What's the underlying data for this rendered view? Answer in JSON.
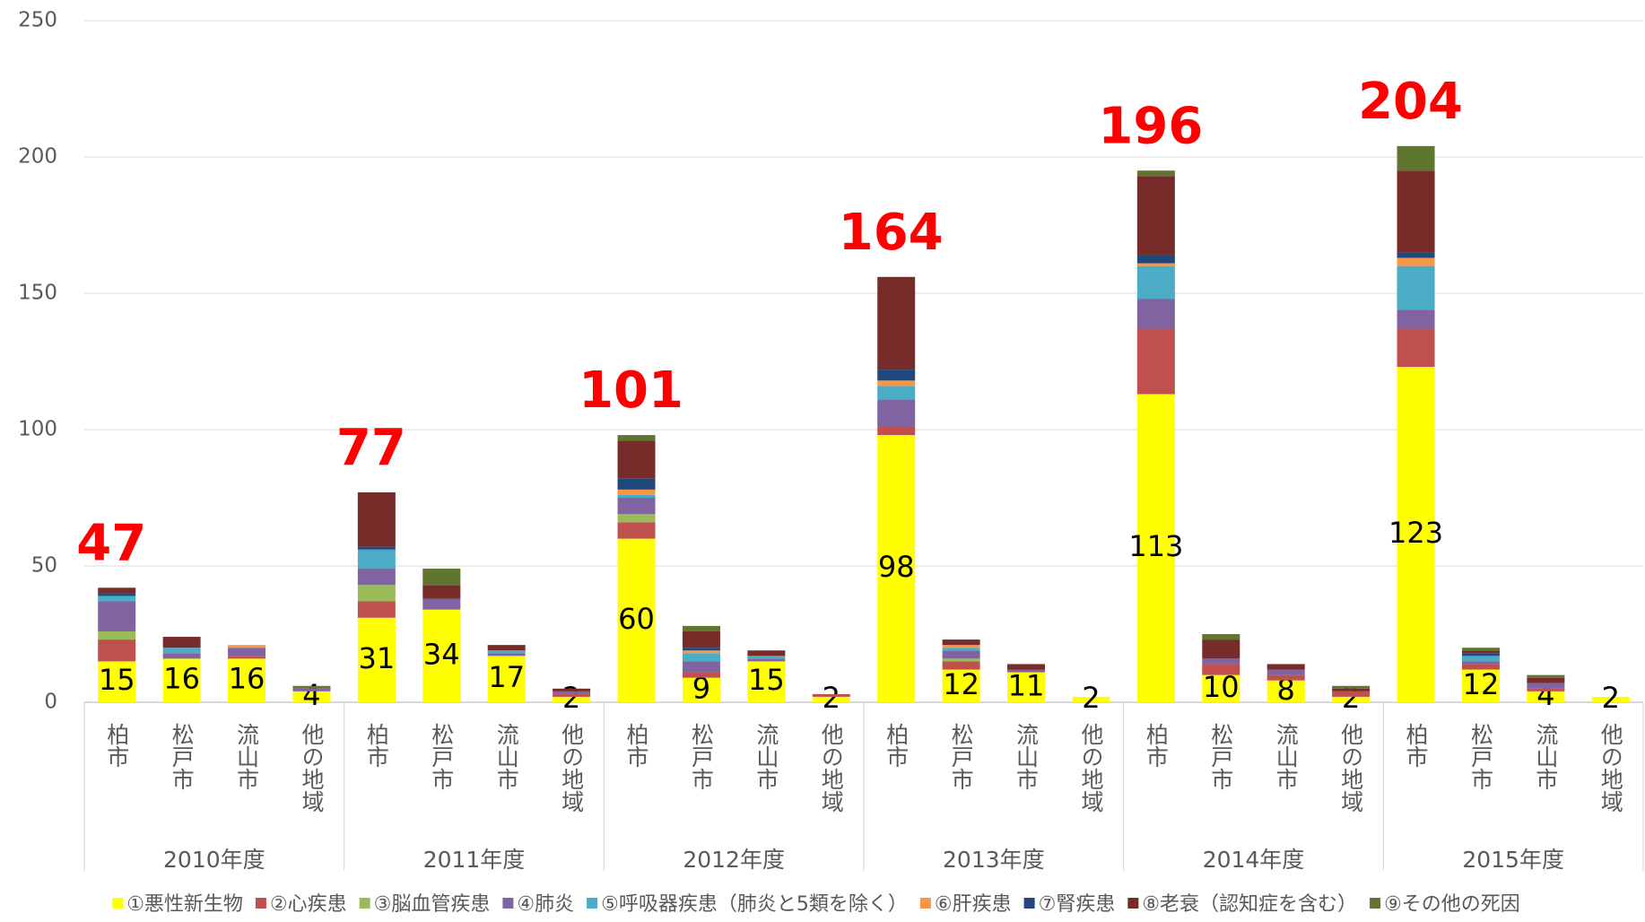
{
  "chart_data": {
    "type": "stacked_bar",
    "groups": [
      "2010年度",
      "2011年度",
      "2012年度",
      "2013年度",
      "2014年度",
      "2015年度"
    ],
    "categories": [
      "柏市",
      "松戸市",
      "流山市",
      "他の地域",
      "柏市",
      "松戸市",
      "流山市",
      "他の地域",
      "柏市",
      "松戸市",
      "流山市",
      "他の地域",
      "柏市",
      "松戸市",
      "流山市",
      "他の地域",
      "柏市",
      "松戸市",
      "流山市",
      "他の地域",
      "柏市",
      "松戸市",
      "流山市",
      "他の地域"
    ],
    "group_totals": [
      47,
      77,
      101,
      164,
      196,
      204
    ],
    "ylim": [
      0,
      250
    ],
    "yticks": [
      0,
      50,
      100,
      150,
      200,
      250
    ],
    "grid": true,
    "legend": "bottom",
    "series": [
      {
        "name": "①悪性新生物",
        "color": "#ffff00",
        "values": [
          15,
          16,
          16,
          4,
          31,
          34,
          17,
          2,
          60,
          9,
          15,
          2,
          98,
          12,
          11,
          2,
          113,
          10,
          8,
          2,
          123,
          12,
          4,
          2
        ]
      },
      {
        "name": "②心疾患",
        "color": "#c0504d",
        "values": [
          8,
          0,
          1,
          0,
          6,
          0,
          0,
          1,
          6,
          2,
          0,
          1,
          3,
          3,
          0,
          0,
          24,
          4,
          2,
          2,
          14,
          2,
          1,
          0
        ]
      },
      {
        "name": "③脳血管疾患",
        "color": "#9bbb59",
        "values": [
          3,
          0,
          0,
          0,
          6,
          0,
          0,
          0,
          3,
          0,
          0,
          0,
          0,
          1,
          0,
          0,
          0,
          0,
          0,
          0,
          0,
          0,
          0,
          0
        ]
      },
      {
        "name": "④肺炎",
        "color": "#8064a2",
        "values": [
          11,
          2,
          3,
          1,
          6,
          4,
          1,
          1,
          6,
          4,
          1,
          0,
          10,
          3,
          1,
          0,
          11,
          2,
          2,
          0,
          7,
          1,
          2,
          0
        ]
      },
      {
        "name": "⑤呼吸器疾患（肺炎と5類を除く）",
        "color": "#4bacc6",
        "values": [
          2,
          2,
          0,
          0,
          7,
          0,
          1,
          0,
          1,
          3,
          1,
          0,
          5,
          1,
          0,
          0,
          12,
          0,
          0,
          0,
          16,
          2,
          0,
          0
        ]
      },
      {
        "name": "⑥肝疾患",
        "color": "#f79646",
        "values": [
          0,
          0,
          1,
          0,
          0,
          0,
          0,
          0,
          2,
          1,
          0,
          0,
          2,
          1,
          0,
          0,
          1,
          0,
          0,
          0,
          3,
          0,
          0,
          0
        ]
      },
      {
        "name": "⑦腎疾患",
        "color": "#1f497d",
        "values": [
          1,
          0,
          0,
          0,
          1,
          0,
          0,
          0,
          4,
          1,
          0,
          0,
          4,
          0,
          0,
          0,
          3,
          0,
          0,
          0,
          2,
          1,
          0,
          0
        ]
      },
      {
        "name": "⑧老衰（認知症を含む）",
        "color": "#772c2a",
        "values": [
          2,
          4,
          0,
          0,
          20,
          5,
          2,
          1,
          14,
          6,
          2,
          0,
          34,
          2,
          2,
          0,
          29,
          7,
          2,
          1,
          30,
          1,
          2,
          0
        ]
      },
      {
        "name": "⑨その他の死因",
        "color": "#5f7530",
        "values": [
          0,
          0,
          0,
          1,
          0,
          6,
          0,
          0,
          2,
          2,
          0,
          0,
          0,
          0,
          0,
          0,
          2,
          2,
          0,
          1,
          9,
          1,
          1,
          0
        ]
      }
    ]
  }
}
